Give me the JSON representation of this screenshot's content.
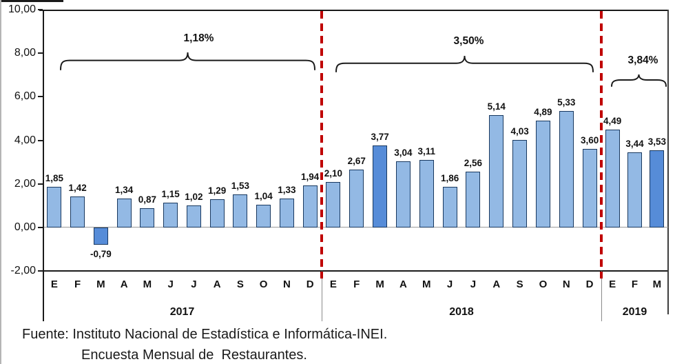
{
  "chart_data": {
    "type": "bar",
    "title": "",
    "xlabel": "",
    "ylabel": "",
    "ylim": [
      -2,
      10
    ],
    "grid": "zero-line-only",
    "legend": "none",
    "ytick_labels": [
      "10,00",
      "8,00",
      "6,00",
      "4,00",
      "2,00",
      "0,00",
      "-2,00"
    ],
    "bar_color": "#93B9E4",
    "highlight_color": "#568CD8",
    "bar_border_color": "#17375E",
    "year_divider_color": "#C00000",
    "groups": [
      {
        "year": "2017",
        "period_label": "1,18%",
        "months": [
          "E",
          "F",
          "M",
          "A",
          "M",
          "J",
          "J",
          "A",
          "S",
          "O",
          "N",
          "D"
        ],
        "values": [
          1.85,
          1.42,
          -0.79,
          1.34,
          0.87,
          1.15,
          1.02,
          1.29,
          1.53,
          1.04,
          1.33,
          1.94
        ],
        "value_labels": [
          "1,85",
          "1,42",
          "-0,79",
          "1,34",
          "0,87",
          "1,15",
          "1,02",
          "1,29",
          "1,53",
          "1,04",
          "1,33",
          "1,94"
        ],
        "highlighted_month_index": 2
      },
      {
        "year": "2018",
        "period_label": "3,50%",
        "months": [
          "E",
          "F",
          "M",
          "A",
          "M",
          "J",
          "J",
          "A",
          "S",
          "O",
          "N",
          "D"
        ],
        "values": [
          2.1,
          2.67,
          3.77,
          3.04,
          3.11,
          1.86,
          2.56,
          5.14,
          4.03,
          4.89,
          5.33,
          3.6
        ],
        "value_labels": [
          "2,10",
          "2,67",
          "3,77",
          "3,04",
          "3,11",
          "1,86",
          "2,56",
          "5,14",
          "4,03",
          "4,89",
          "5,33",
          "3,60"
        ],
        "highlighted_month_index": 2
      },
      {
        "year": "2019",
        "period_label": "3,84%",
        "months": [
          "E",
          "F",
          "M"
        ],
        "values": [
          4.49,
          3.44,
          3.53
        ],
        "value_labels": [
          "4,49",
          "3,44",
          "3,53"
        ],
        "highlighted_month_index": 2
      }
    ]
  },
  "source": {
    "line1": "Fuente: Instituto Nacional de Estadística e Informática-INEI.",
    "line2": "Encuesta Mensual de  Restaurantes."
  }
}
